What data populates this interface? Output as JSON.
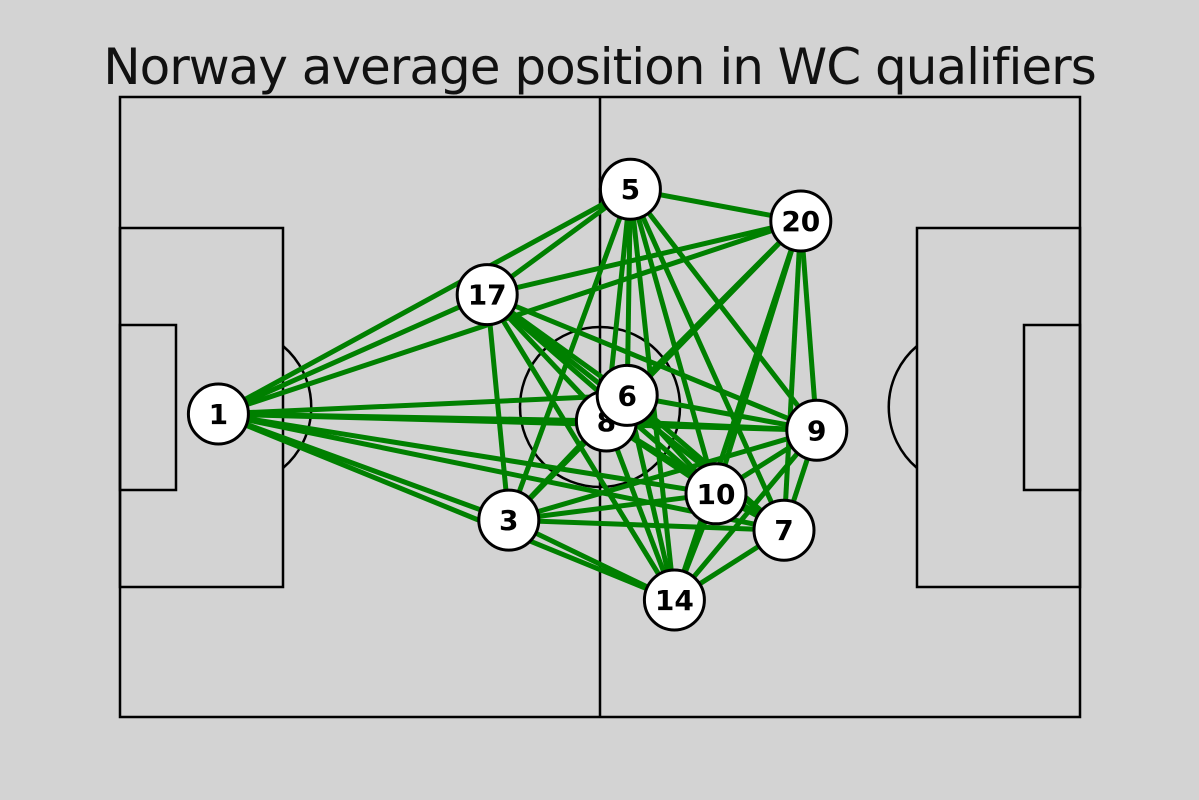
{
  "title": "Norway average position in WC qualifiers",
  "colors": {
    "background": "#d3d3d3",
    "pitch_lines": "#000000",
    "pass_lines": "#008000",
    "node_fill": "#ffffff"
  },
  "pitch": {
    "length": 120,
    "width": 80
  },
  "chart_data": {
    "type": "network",
    "title": "Norway average position in WC qualifiers",
    "players": [
      {
        "number": "1",
        "x": 12.3,
        "y": 40.9
      },
      {
        "number": "17",
        "x": 45.9,
        "y": 25.5
      },
      {
        "number": "5",
        "x": 63.8,
        "y": 11.9
      },
      {
        "number": "20",
        "x": 85.1,
        "y": 16.0
      },
      {
        "number": "8",
        "x": 60.8,
        "y": 41.8
      },
      {
        "number": "6",
        "x": 63.4,
        "y": 38.5
      },
      {
        "number": "9",
        "x": 87.1,
        "y": 43.0
      },
      {
        "number": "10",
        "x": 74.5,
        "y": 51.2
      },
      {
        "number": "7",
        "x": 83.0,
        "y": 55.9
      },
      {
        "number": "3",
        "x": 48.6,
        "y": 54.6
      },
      {
        "number": "14",
        "x": 69.3,
        "y": 64.9
      }
    ],
    "edges": "all-pairs"
  }
}
